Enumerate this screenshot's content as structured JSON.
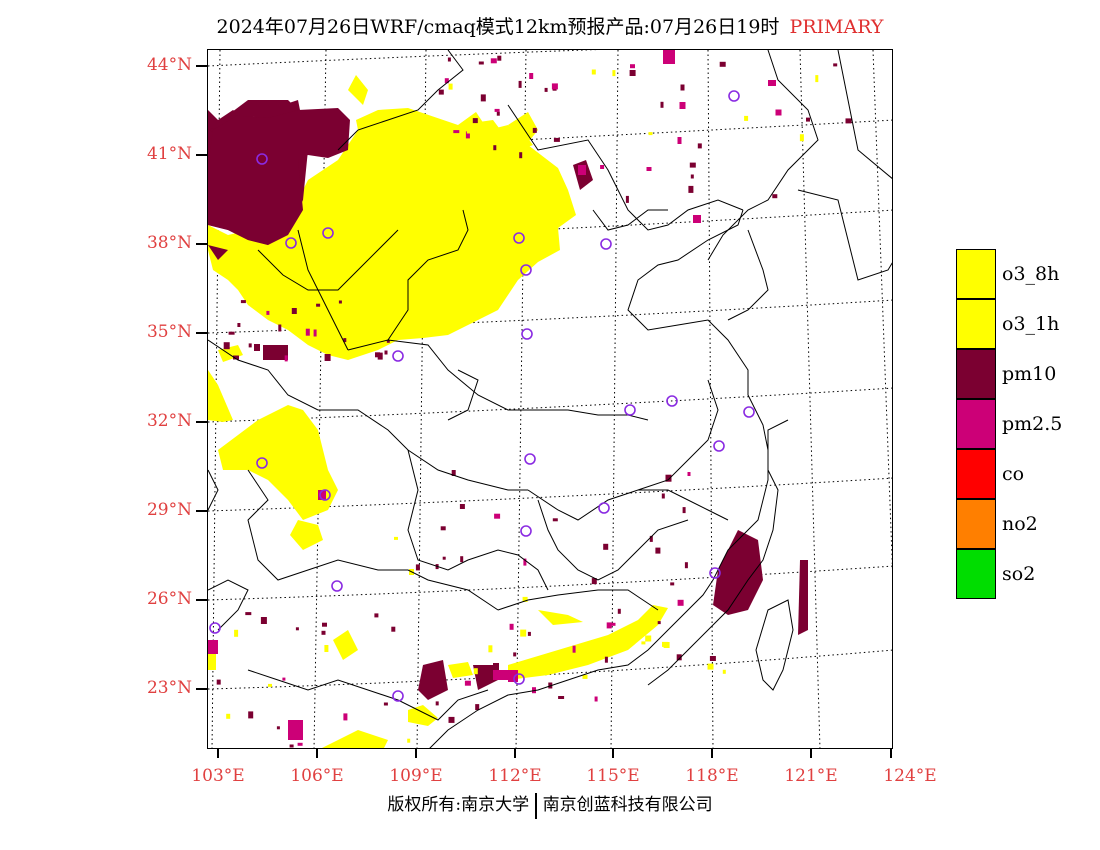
{
  "title": {
    "main": "2024年07月26日WRF/cmaq模式12km预报产品:07月26日19时",
    "tag": "PRIMARY"
  },
  "lat_labels": [
    "44°N",
    "41°N",
    "38°N",
    "35°N",
    "32°N",
    "29°N",
    "26°N",
    "23°N"
  ],
  "lon_labels": [
    "103°E",
    "106°E",
    "109°E",
    "112°E",
    "115°E",
    "118°E",
    "121°E",
    "124°E"
  ],
  "legend": [
    {
      "label": "o3_8h",
      "color": "#ffff00"
    },
    {
      "label": "o3_1h",
      "color": "#ffff00"
    },
    {
      "label": "pm10",
      "color": "#7b0031"
    },
    {
      "label": "pm2.5",
      "color": "#cc0077"
    },
    {
      "label": "co",
      "color": "#ff0000"
    },
    {
      "label": "no2",
      "color": "#ff7f00"
    },
    {
      "label": "so2",
      "color": "#00dd00"
    }
  ],
  "footer": {
    "left": "版权所有:南京大学",
    "right": "南京创蓝科技有限公司"
  },
  "colors": {
    "o3": "#ffff00",
    "pm10": "#7b0031",
    "pm25": "#cc0077",
    "station": "#8a2be2",
    "axis_label": "#e04040"
  }
}
